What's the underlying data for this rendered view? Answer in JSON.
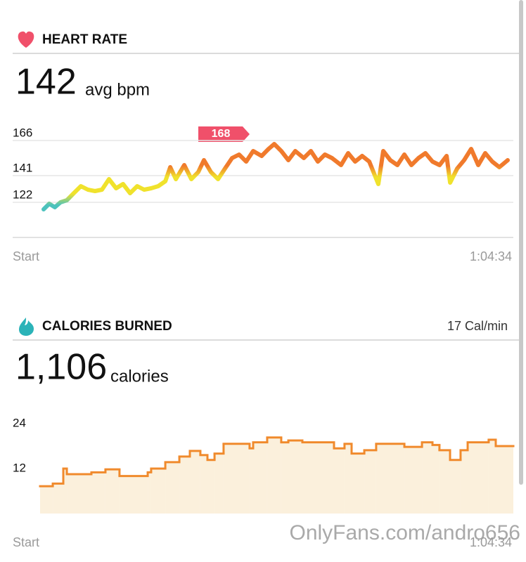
{
  "chart_data": [
    {
      "type": "line",
      "title": "HEART RATE",
      "summary": 142,
      "summary_unit": "avg bpm",
      "x": [
        0,
        47,
        94,
        141,
        194,
        252,
        311,
        370,
        429,
        487,
        546,
        605,
        663,
        722,
        781,
        839,
        898,
        957,
        1016,
        1057,
        1104,
        1174,
        1233,
        1291,
        1338,
        1397,
        1456,
        1514,
        1573,
        1632,
        1691,
        1749,
        1820,
        1878,
        1925,
        1984,
        2043,
        2101,
        2172,
        2231,
        2289,
        2348,
        2407,
        2483,
        2542,
        2600,
        2659,
        2718,
        2794,
        2835,
        2894,
        2953,
        3011,
        3070,
        3129,
        3187,
        3246,
        3305,
        3364,
        3393,
        3452,
        3510,
        3569,
        3628,
        3686,
        3745,
        3804,
        3874
      ],
      "series": [
        {
          "values": [
            117,
            121,
            118.5,
            122,
            123.5,
            128.5,
            133.5,
            131,
            130,
            131,
            138.5,
            132,
            135,
            128.5,
            133.5,
            131,
            132,
            133.5,
            137,
            147,
            138.5,
            148.5,
            138.5,
            143.5,
            152,
            143.5,
            138.5,
            146,
            153.5,
            156,
            151,
            158.5,
            155,
            160,
            163.5,
            158.5,
            152,
            158.5,
            153.5,
            158.5,
            151,
            156,
            153.5,
            148.5,
            157,
            151,
            155,
            151,
            135,
            158.5,
            152,
            148.5,
            156,
            148.5,
            153.5,
            157,
            151,
            148.5,
            155,
            136,
            146,
            152,
            160,
            148.5,
            157,
            151,
            147,
            152
          ],
          "color_stops": [
            {
              "value": 120,
              "color": "#4cc2bd"
            },
            {
              "value": 128,
              "color": "#f0e22c"
            },
            {
              "value": 140,
              "color": "#f0e22c"
            },
            {
              "value": 148,
              "color": "#f07a2c"
            }
          ]
        }
      ],
      "xlim": [
        0,
        3874
      ],
      "xticks": [
        {
          "value": 0,
          "label": "Start"
        },
        {
          "value": 3874,
          "label": "1:04:34"
        }
      ],
      "ylim": [
        97,
        176
      ],
      "yticks": [
        122,
        141,
        166
      ],
      "grid": true,
      "annotation": {
        "value": 168,
        "color": "#f0506a"
      }
    },
    {
      "type": "step-area",
      "title": "CALORIES BURNED",
      "subtitle": "17 Cal/min",
      "summary": {
        "value": 1106,
        "label": "1,106"
      },
      "summary_unit": "calories",
      "x": [
        0,
        104,
        190,
        219,
        420,
        535,
        650,
        881,
        909,
        1025,
        1140,
        1226,
        1312,
        1370,
        1428,
        1502,
        1715,
        1744,
        1859,
        1974,
        2032,
        2147,
        2406,
        2492,
        2550,
        2654,
        2751,
        2982,
        3126,
        3212,
        3269,
        3356,
        3442,
        3500,
        3672,
        3730
      ],
      "series": [
        {
          "values": [
            7.3,
            8,
            12,
            10.5,
            11,
            11.8,
            10,
            11,
            12,
            13.7,
            15.2,
            16.7,
            15.6,
            14.3,
            16,
            18.6,
            17.4,
            19,
            20.3,
            19,
            19.5,
            19,
            17.4,
            18.6,
            16,
            16.9,
            18.6,
            17.8,
            19,
            18.3,
            16.9,
            14.3,
            16.9,
            19,
            19.7,
            18
          ],
          "color": "#f08a2c",
          "fill": "#fbf0dc"
        }
      ],
      "xlim": [
        0,
        3874
      ],
      "xticks": [
        {
          "value": 0,
          "label": "Start"
        },
        {
          "value": 3874,
          "label": "1:04:34"
        }
      ],
      "ylim": [
        0,
        27
      ],
      "yticks": [
        12,
        24
      ],
      "grid": false
    }
  ],
  "watermark": "OnlyFans.com/andro656"
}
